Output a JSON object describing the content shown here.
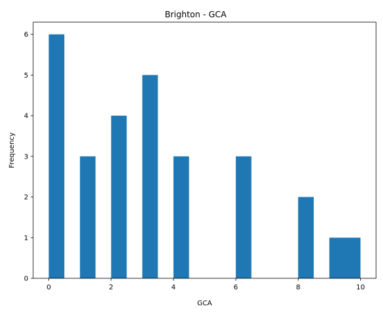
{
  "chart_data": {
    "type": "bar",
    "title": "Brighton - GCA",
    "xlabel": "GCA",
    "ylabel": "Frequency",
    "bins": [
      {
        "x0": 0.0,
        "x1": 0.5,
        "value": 6
      },
      {
        "x0": 1.0,
        "x1": 1.5,
        "value": 3
      },
      {
        "x0": 2.0,
        "x1": 2.5,
        "value": 4
      },
      {
        "x0": 3.0,
        "x1": 3.5,
        "value": 5
      },
      {
        "x0": 4.0,
        "x1": 4.5,
        "value": 3
      },
      {
        "x0": 6.0,
        "x1": 6.5,
        "value": 3
      },
      {
        "x0": 8.0,
        "x1": 8.5,
        "value": 2
      },
      {
        "x0": 9.0,
        "x1": 10.0,
        "value": 1
      }
    ],
    "xlim": [
      -0.5,
      10.5
    ],
    "ylim": [
      0,
      6.3
    ],
    "xticks": [
      "0",
      "2",
      "4",
      "6",
      "8",
      "10"
    ],
    "yticks": [
      "0",
      "1",
      "2",
      "3",
      "4",
      "5",
      "6"
    ],
    "bar_color": "#1f77b4",
    "grid": false
  }
}
